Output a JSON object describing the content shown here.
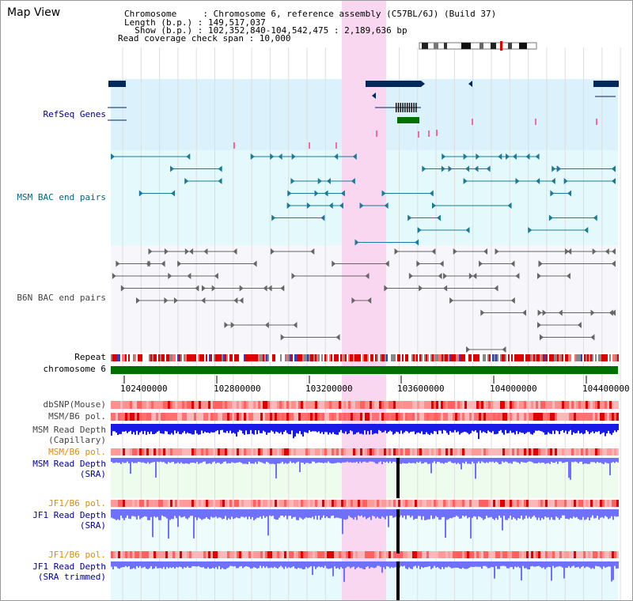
{
  "header": {
    "title": "Map View",
    "info_lines": [
      "Chromosome     : Chromosome 6, reference assembly (C57BL/6J) (Build 37)",
      "Length (b.p.) : 149,517,037",
      "  Show (b.p.) : 102,352,840-104,542,475 : 2,189,636 bp",
      "Read coverage check span : 10,000"
    ]
  },
  "tracks": {
    "refseq": "RefSeq Genes",
    "msm_bac": "MSM BAC end pairs",
    "b6n_bac": "B6N BAC end pairs",
    "repeat": "Repeat",
    "chromosome": "chromosome 6",
    "dbsnp": "dbSNP(Mouse)",
    "msm_b6_pol": "MSM/B6 pol.",
    "msm_depth_cap_1": "MSM Read Depth",
    "msm_depth_cap_2": "(Capillary)",
    "msm_b6_pol_2": "MSM/B6 pol.",
    "msm_depth_sra_1": "MSM Read Depth",
    "msm_depth_sra_2": "(SRA)",
    "jf1_b6_pol": "JF1/B6 pol.",
    "jf1_depth_sra_1": "JF1 Read Depth",
    "jf1_depth_sra_2": "(SRA)",
    "jf1_b6_pol_2": "JF1/B6 pol.",
    "jf1_depth_trim_1": "JF1 Read Depth",
    "jf1_depth_trim_2": "(SRA trimmed)"
  },
  "axis": {
    "ticks": [
      "102400000",
      "102800000",
      "103200000",
      "103600000",
      "104000000",
      "104400000"
    ]
  },
  "colors": {
    "refseq_bg": "#dbf1fb",
    "msm_bg": "#e4f9fb",
    "highlight": "#f9d7f0",
    "gene": "#00285a",
    "msm_pair": "#1a7a99",
    "b6n_pair": "#666666",
    "chromosome": "#007000",
    "depth_cap": "#1a1ae6",
    "depth_sra": "#7070ff"
  }
}
